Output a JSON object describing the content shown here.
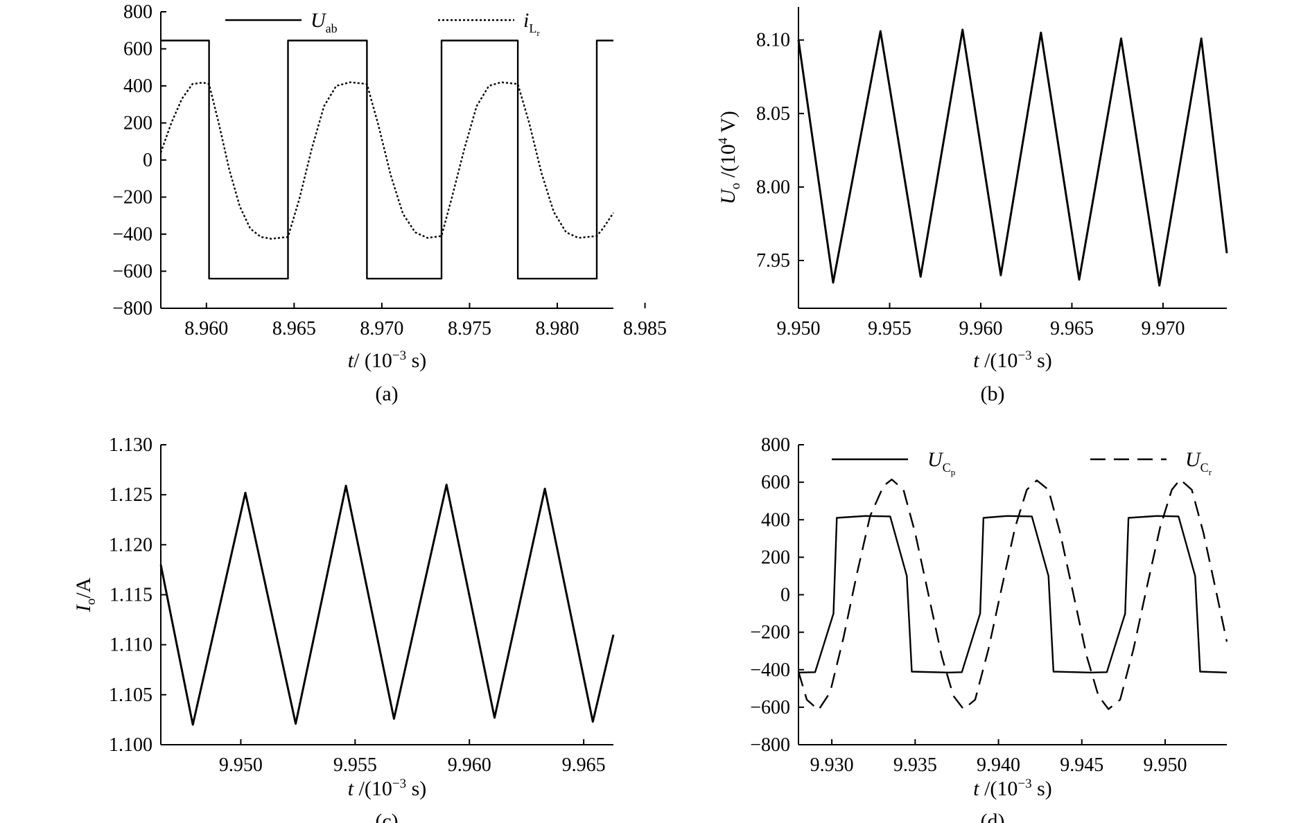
{
  "chart_data": [
    {
      "id": "a",
      "type": "line",
      "caption": "(a)",
      "xlabel": {
        "var": "t",
        "rest": "/ (10",
        "exp": "−3",
        "unit": " s)"
      },
      "ylabel": "",
      "xlim": [
        8.9574,
        8.9832
      ],
      "ylim": [
        -800,
        800
      ],
      "xticks": [
        "8.960",
        "8.965",
        "8.970",
        "8.975",
        "8.980",
        "8.985"
      ],
      "xtick_values": [
        8.96,
        8.965,
        8.97,
        8.975,
        8.98,
        8.985
      ],
      "yticks": [
        "800",
        "600",
        "400",
        "200",
        "0",
        "−200",
        "−400",
        "−600",
        "−800"
      ],
      "ytick_values": [
        800,
        600,
        400,
        200,
        0,
        -200,
        -400,
        -600,
        -800
      ],
      "legend_position": "top",
      "series": [
        {
          "name": "U_ab",
          "legend": {
            "main": "U",
            "sub": "ab",
            "subsub": ""
          },
          "style": "solid",
          "points": [
            [
              8.9574,
              645
            ],
            [
              8.96015,
              645
            ],
            [
              8.96015,
              -640
            ],
            [
              8.96465,
              -640
            ],
            [
              8.96465,
              645
            ],
            [
              8.96915,
              645
            ],
            [
              8.96915,
              -640
            ],
            [
              8.9734,
              -640
            ],
            [
              8.9734,
              645
            ],
            [
              8.97775,
              645
            ],
            [
              8.97775,
              -640
            ],
            [
              8.98225,
              -640
            ],
            [
              8.98225,
              645
            ],
            [
              8.9832,
              645
            ]
          ]
        },
        {
          "name": "i_Lr",
          "legend": {
            "main": "i",
            "sub": "L",
            "subsub": "r"
          },
          "style": "dotted",
          "points": [
            [
              8.9574,
              40
            ],
            [
              8.958,
              200
            ],
            [
              8.9586,
              330
            ],
            [
              8.9592,
              410
            ],
            [
              8.9598,
              418
            ],
            [
              8.96015,
              410
            ],
            [
              8.9607,
              200
            ],
            [
              8.9613,
              -50
            ],
            [
              8.9619,
              -250
            ],
            [
              8.9625,
              -370
            ],
            [
              8.9631,
              -415
            ],
            [
              8.9637,
              -425
            ],
            [
              8.96465,
              -415
            ],
            [
              8.9653,
              -210
            ],
            [
              8.966,
              60
            ],
            [
              8.9667,
              290
            ],
            [
              8.9674,
              400
            ],
            [
              8.9682,
              420
            ],
            [
              8.96915,
              410
            ],
            [
              8.9698,
              190
            ],
            [
              8.9705,
              -80
            ],
            [
              8.9712,
              -290
            ],
            [
              8.9719,
              -390
            ],
            [
              8.9726,
              -420
            ],
            [
              8.9734,
              -410
            ],
            [
              8.974,
              -200
            ],
            [
              8.9747,
              60
            ],
            [
              8.9754,
              290
            ],
            [
              8.9761,
              400
            ],
            [
              8.9768,
              420
            ],
            [
              8.97775,
              410
            ],
            [
              8.9784,
              200
            ],
            [
              8.9791,
              -70
            ],
            [
              8.9798,
              -280
            ],
            [
              8.9805,
              -390
            ],
            [
              8.9812,
              -420
            ],
            [
              8.98225,
              -410
            ],
            [
              8.9826,
              -370
            ],
            [
              8.9832,
              -285
            ]
          ]
        }
      ]
    },
    {
      "id": "b",
      "type": "line",
      "caption": "(b)",
      "xlabel": {
        "var": "t",
        "rest": " /(10",
        "exp": "−3",
        "unit": " s)"
      },
      "ylabel": {
        "main": "U",
        "sub": "o",
        "rest": " /(10",
        "exp": "4",
        "unit": " V)"
      },
      "xlim": [
        9.95,
        9.9735
      ],
      "ylim": [
        7.9175,
        8.1225
      ],
      "xticks": [
        "9.950",
        "9.955",
        "9.960",
        "9.965",
        "9.970"
      ],
      "xtick_values": [
        9.95,
        9.955,
        9.96,
        9.965,
        9.97
      ],
      "yticks": [
        "8.10",
        "8.05",
        "8.00",
        "7.95"
      ],
      "ytick_values": [
        8.1,
        8.05,
        8.0,
        7.95
      ],
      "series": [
        {
          "name": "U_o",
          "style": "solid",
          "points": [
            [
              9.95,
              8.1
            ],
            [
              9.9519,
              7.935
            ],
            [
              9.9545,
              8.106
            ],
            [
              9.9567,
              7.939
            ],
            [
              9.959,
              8.107
            ],
            [
              9.9611,
              7.94
            ],
            [
              9.9633,
              8.105
            ],
            [
              9.9654,
              7.937
            ],
            [
              9.9677,
              8.101
            ],
            [
              9.9698,
              7.933
            ],
            [
              9.9721,
              8.101
            ],
            [
              9.9735,
              7.955
            ]
          ]
        }
      ]
    },
    {
      "id": "c",
      "type": "line",
      "caption": "(c)",
      "xlabel": {
        "var": "t",
        "rest": " /(10",
        "exp": "−3",
        "unit": " s)"
      },
      "ylabel": {
        "main": "I",
        "sub": "o",
        "rest": "/A"
      },
      "xlim": [
        9.9465,
        9.9663
      ],
      "ylim": [
        1.1,
        1.13
      ],
      "xticks": [
        "9.950",
        "9.955",
        "9.960",
        "9.965"
      ],
      "xtick_values": [
        9.95,
        9.955,
        9.96,
        9.965
      ],
      "yticks": [
        "1.130",
        "1.125",
        "1.120",
        "1.115",
        "1.110",
        "1.105",
        "1.100"
      ],
      "ytick_values": [
        1.13,
        1.125,
        1.12,
        1.115,
        1.11,
        1.105,
        1.1
      ],
      "series": [
        {
          "name": "I_o",
          "style": "solid",
          "points": [
            [
              9.9465,
              1.118
            ],
            [
              9.9479,
              1.102
            ],
            [
              9.9502,
              1.1252
            ],
            [
              9.9524,
              1.1021
            ],
            [
              9.9546,
              1.1259
            ],
            [
              9.9567,
              1.1026
            ],
            [
              9.959,
              1.126
            ],
            [
              9.9611,
              1.1027
            ],
            [
              9.9633,
              1.1256
            ],
            [
              9.9654,
              1.1023
            ],
            [
              9.9663,
              1.111
            ]
          ]
        }
      ]
    },
    {
      "id": "d",
      "type": "line",
      "caption": "(d)",
      "xlabel": {
        "var": "t",
        "rest": " /(10",
        "exp": "−3",
        "unit": " s)"
      },
      "ylabel": "",
      "xlim": [
        9.928,
        9.9537
      ],
      "ylim": [
        -800,
        800
      ],
      "xticks": [
        "9.930",
        "9.935",
        "9.940",
        "9.945",
        "9.950"
      ],
      "xtick_values": [
        9.93,
        9.935,
        9.94,
        9.945,
        9.95
      ],
      "yticks": [
        "800",
        "600",
        "400",
        "200",
        "0",
        "−200",
        "−400",
        "−600",
        "−800"
      ],
      "ytick_values": [
        800,
        600,
        400,
        200,
        0,
        -200,
        -400,
        -600,
        -800
      ],
      "legend_position": "top",
      "series": [
        {
          "name": "U_Cp",
          "legend": {
            "main": "U",
            "sub": "C",
            "subsub": "p"
          },
          "style": "solid",
          "points": [
            [
              9.928,
              -415
            ],
            [
              9.929,
              -413
            ],
            [
              9.9301,
              -100
            ],
            [
              9.9303,
              410
            ],
            [
              9.932,
              420
            ],
            [
              9.9335,
              418
            ],
            [
              9.9345,
              100
            ],
            [
              9.9348,
              -410
            ],
            [
              9.937,
              -415
            ],
            [
              9.9378,
              -413
            ],
            [
              9.9389,
              -100
            ],
            [
              9.9391,
              410
            ],
            [
              9.9405,
              420
            ],
            [
              9.942,
              418
            ],
            [
              9.943,
              100
            ],
            [
              9.9433,
              -410
            ],
            [
              9.9455,
              -415
            ],
            [
              9.9465,
              -413
            ],
            [
              9.9476,
              -100
            ],
            [
              9.9478,
              410
            ],
            [
              9.9495,
              420
            ],
            [
              9.9508,
              418
            ],
            [
              9.9518,
              100
            ],
            [
              9.9521,
              -410
            ],
            [
              9.9537,
              -415
            ]
          ]
        },
        {
          "name": "U_Cr",
          "legend": {
            "main": "U",
            "sub": "C",
            "subsub": "r"
          },
          "style": "dashed",
          "points": [
            [
              9.928,
              -410
            ],
            [
              9.9285,
              -560
            ],
            [
              9.9292,
              -615
            ],
            [
              9.9299,
              -520
            ],
            [
              9.9307,
              -230
            ],
            [
              9.9315,
              110
            ],
            [
              9.9323,
              420
            ],
            [
              9.9331,
              580
            ],
            [
              9.9336,
              615
            ],
            [
              9.9343,
              560
            ],
            [
              9.935,
              330
            ],
            [
              9.9358,
              0
            ],
            [
              9.9366,
              -330
            ],
            [
              9.9373,
              -540
            ],
            [
              9.9379,
              -610
            ],
            [
              9.9386,
              -560
            ],
            [
              9.9394,
              -290
            ],
            [
              9.9402,
              40
            ],
            [
              9.941,
              360
            ],
            [
              9.9417,
              560
            ],
            [
              9.9423,
              610
            ],
            [
              9.943,
              560
            ],
            [
              9.9437,
              330
            ],
            [
              9.9445,
              0
            ],
            [
              9.9453,
              -330
            ],
            [
              9.946,
              -540
            ],
            [
              9.9466,
              -610
            ],
            [
              9.9473,
              -560
            ],
            [
              9.9481,
              -290
            ],
            [
              9.9489,
              40
            ],
            [
              9.9497,
              360
            ],
            [
              9.9504,
              560
            ],
            [
              9.9509,
              615
            ],
            [
              9.9516,
              560
            ],
            [
              9.9523,
              330
            ],
            [
              9.9531,
              0
            ],
            [
              9.9537,
              -250
            ]
          ]
        }
      ]
    }
  ]
}
